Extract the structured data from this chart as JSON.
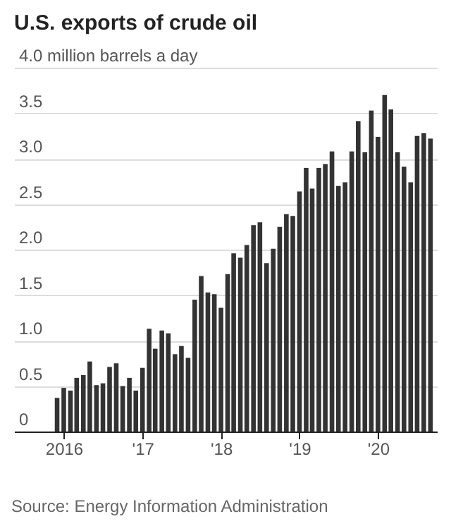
{
  "chart_data": {
    "type": "bar",
    "title": "U.S. exports of crude oil",
    "annotations": [
      "Source: Energy Information Administration"
    ],
    "x": [
      "2015-12",
      "2016-01",
      "2016-02",
      "2016-03",
      "2016-04",
      "2016-05",
      "2016-06",
      "2016-07",
      "2016-08",
      "2016-09",
      "2016-10",
      "2016-11",
      "2016-12",
      "2017-01",
      "2017-02",
      "2017-03",
      "2017-04",
      "2017-05",
      "2017-06",
      "2017-07",
      "2017-08",
      "2017-09",
      "2017-10",
      "2017-11",
      "2017-12",
      "2018-01",
      "2018-02",
      "2018-03",
      "2018-04",
      "2018-05",
      "2018-06",
      "2018-07",
      "2018-08",
      "2018-09",
      "2018-10",
      "2018-11",
      "2018-12",
      "2019-01",
      "2019-02",
      "2019-03",
      "2019-04",
      "2019-05",
      "2019-06",
      "2019-07",
      "2019-08",
      "2019-09",
      "2019-10",
      "2019-11",
      "2019-12",
      "2020-01",
      "2020-02",
      "2020-03",
      "2020-04",
      "2020-05",
      "2020-06",
      "2020-07",
      "2020-08",
      "2020-09"
    ],
    "values": [
      0.37,
      0.48,
      0.45,
      0.59,
      0.62,
      0.77,
      0.51,
      0.53,
      0.71,
      0.75,
      0.5,
      0.59,
      0.45,
      0.7,
      1.13,
      0.91,
      1.11,
      1.08,
      0.85,
      0.94,
      0.81,
      1.45,
      1.71,
      1.53,
      1.51,
      1.36,
      1.73,
      1.96,
      1.91,
      2.05,
      2.27,
      2.3,
      1.85,
      2.01,
      2.25,
      2.39,
      2.37,
      2.64,
      2.9,
      2.67,
      2.9,
      2.94,
      3.08,
      2.7,
      2.74,
      3.08,
      3.41,
      3.07,
      3.53,
      3.24,
      3.7,
      3.54,
      3.07,
      2.91,
      2.74,
      3.25,
      3.28,
      3.22
    ],
    "color": "#333333",
    "xlim": [
      "2015-05-15",
      "2020-10-01"
    ],
    "xticks": [
      {
        "value": "2016-01",
        "label": "2016"
      },
      {
        "value": "2017-01",
        "label": "'17"
      },
      {
        "value": "2018-01",
        "label": "'18"
      },
      {
        "value": "2019-01",
        "label": "'19"
      },
      {
        "value": "2020-01",
        "label": "'20"
      }
    ],
    "ylim": [
      0,
      4
    ],
    "yticks": [
      0,
      {
        "value": 0.5,
        "label": "0.5"
      },
      {
        "value": 1,
        "label": "1.0"
      },
      {
        "value": 1.5,
        "label": "1.5"
      },
      {
        "value": 2,
        "label": "2.0"
      },
      {
        "value": 2.5,
        "label": "2.5"
      },
      {
        "value": 3,
        "label": "3.0"
      },
      {
        "value": 3.5,
        "label": "3.5"
      },
      {
        "value": 4,
        "label": "4.0 million barrels a day"
      }
    ],
    "grid": "y"
  }
}
